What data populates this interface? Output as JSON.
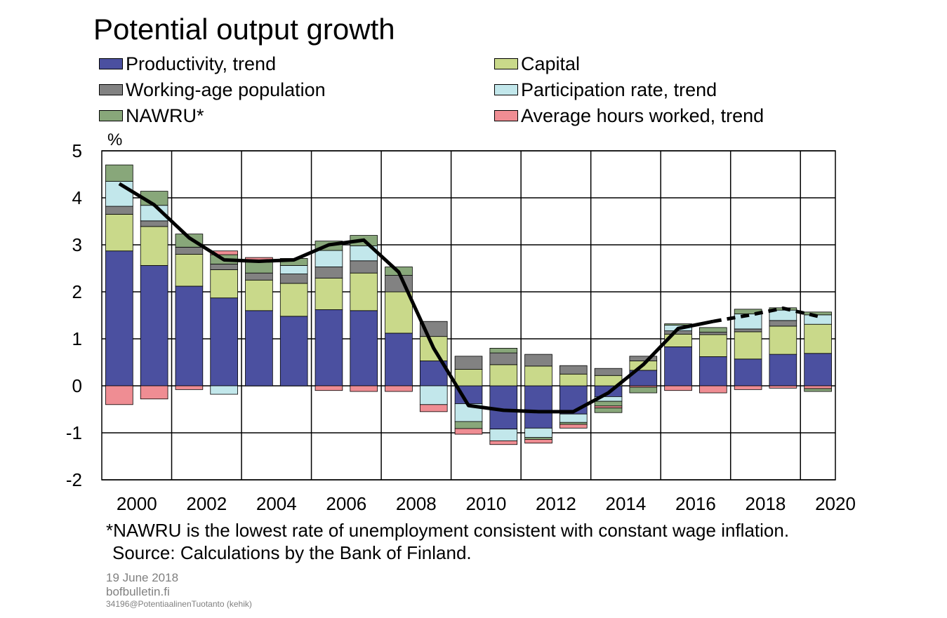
{
  "chart_data": {
    "type": "bar",
    "title": "Potential output growth",
    "ylabel": "%",
    "ylim": [
      -2,
      5
    ],
    "yticks": [
      "5",
      "4",
      "3",
      "2",
      "1",
      "0",
      "-1",
      "-2"
    ],
    "xtick_labels": [
      "2000",
      "2002",
      "2004",
      "2006",
      "2008",
      "2010",
      "2012",
      "2014",
      "2016",
      "2018",
      "2020"
    ],
    "categories": [
      1999,
      2000,
      2001,
      2002,
      2003,
      2004,
      2005,
      2006,
      2007,
      2008,
      2009,
      2010,
      2011,
      2012,
      2013,
      2014,
      2015,
      2016,
      2017,
      2018,
      2019
    ],
    "grid": true,
    "stacked": true,
    "legend_position": "top",
    "series": [
      {
        "name": "Productivity, trend",
        "color": "#4b50a0",
        "values": [
          2.87,
          2.56,
          2.12,
          1.87,
          1.6,
          1.48,
          1.62,
          1.6,
          1.12,
          0.53,
          -0.38,
          -0.92,
          -0.9,
          -0.6,
          -0.23,
          0.33,
          0.83,
          0.62,
          0.57,
          0.67,
          0.69
        ]
      },
      {
        "name": "Capital",
        "color": "#c9d98a",
        "values": [
          0.78,
          0.83,
          0.68,
          0.6,
          0.65,
          0.7,
          0.67,
          0.8,
          0.88,
          0.52,
          0.35,
          0.45,
          0.42,
          0.25,
          0.22,
          0.2,
          0.27,
          0.47,
          0.58,
          0.6,
          0.62
        ]
      },
      {
        "name": "Working-age population",
        "color": "#828282",
        "values": [
          0.17,
          0.12,
          0.15,
          0.12,
          0.15,
          0.2,
          0.24,
          0.26,
          0.35,
          0.32,
          0.28,
          0.25,
          0.25,
          0.18,
          0.15,
          0.1,
          0.07,
          0.05,
          0.06,
          0.12,
          0.0
        ]
      },
      {
        "name": "Participation rate, trend",
        "color": "#c2e7eb",
        "values": [
          0.53,
          0.33,
          0.0,
          -0.18,
          0.0,
          0.18,
          0.35,
          0.32,
          0.0,
          -0.4,
          -0.38,
          -0.25,
          -0.2,
          -0.18,
          -0.1,
          0.0,
          0.12,
          0.0,
          0.32,
          0.22,
          0.2
        ]
      },
      {
        "name": "NAWRU*",
        "color": "#88a77a",
        "values": [
          0.35,
          0.3,
          0.28,
          0.2,
          0.28,
          0.15,
          0.2,
          0.22,
          0.18,
          0.0,
          -0.15,
          0.1,
          -0.04,
          -0.04,
          -0.1,
          0.0,
          0.03,
          0.1,
          0.1,
          0.05,
          0.06
        ]
      },
      {
        "name": "Average hours worked, trend",
        "color": "#ef8d93",
        "values": [
          -0.4,
          -0.28,
          -0.08,
          0.08,
          0.05,
          0.0,
          -0.1,
          -0.12,
          -0.12,
          -0.15,
          -0.12,
          -0.08,
          -0.08,
          -0.08,
          -0.04,
          -0.03,
          -0.1,
          -0.15,
          -0.08,
          -0.05,
          -0.06
        ]
      }
    ],
    "nawru_negative": [
      0,
      0,
      0,
      0,
      0,
      0,
      0,
      0,
      0,
      0,
      0,
      0,
      0,
      0,
      -0.1,
      -0.12,
      0,
      0,
      0,
      0,
      -0.06
    ],
    "line": {
      "name": "Potential output growth",
      "values": [
        4.3,
        3.85,
        3.15,
        2.68,
        2.65,
        2.68,
        3.0,
        3.1,
        2.42,
        0.8,
        -0.42,
        -0.52,
        -0.55,
        -0.55,
        -0.15,
        0.45,
        1.22,
        1.37,
        1.5,
        1.65,
        1.48
      ],
      "forecast_from_index": 17
    }
  },
  "legend": [
    {
      "label": "Productivity, trend",
      "color": "#4b50a0"
    },
    {
      "label": "Capital",
      "color": "#c9d98a"
    },
    {
      "label": "Working-age population",
      "color": "#828282"
    },
    {
      "label": "Participation rate, trend",
      "color": "#c2e7eb"
    },
    {
      "label": "NAWRU*",
      "color": "#88a77a"
    },
    {
      "label": "Average hours worked, trend",
      "color": "#ef8d93"
    }
  ],
  "footnote": "*NAWRU is the lowest rate of unemployment consistent with constant wage inflation.",
  "source": "Source: Calculations by the Bank of Finland.",
  "date": "19 June 2018",
  "site": "bofbulletin.fi",
  "chart_id": "34196@PotentiaalinenTuotanto (kehik)"
}
